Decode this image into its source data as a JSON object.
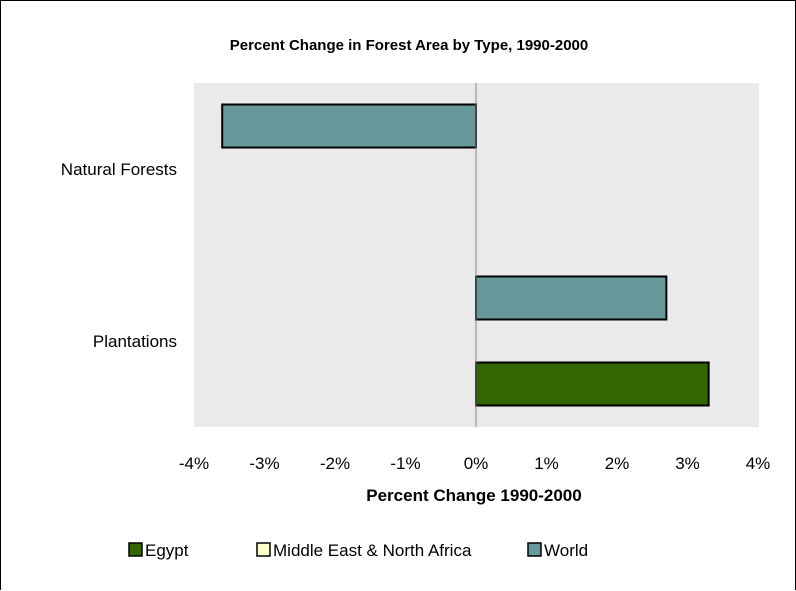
{
  "chart_data": {
    "type": "bar",
    "orientation": "horizontal",
    "title": "Percent Change in Forest Area by Type, 1990-2000",
    "xlabel": "Percent Change 1990-2000",
    "ylabel": "",
    "xlim": [
      -4,
      4
    ],
    "x_ticks": [
      -4,
      -3,
      -2,
      -1,
      0,
      1,
      2,
      3,
      4
    ],
    "x_tick_labels": [
      "-4%",
      "-3%",
      "-2%",
      "-1%",
      "0%",
      "1%",
      "2%",
      "3%",
      "4%"
    ],
    "categories": [
      "Natural Forests",
      "Plantations"
    ],
    "series": [
      {
        "name": "Egypt",
        "color": "#336600",
        "values": [
          null,
          3.3
        ]
      },
      {
        "name": "Middle East & North Africa",
        "color": "#FFFFCC",
        "values": [
          null,
          null
        ]
      },
      {
        "name": "World",
        "color": "#669999",
        "values": [
          -3.6,
          2.7
        ]
      }
    ],
    "grid": false,
    "plot_background": "#EAEAEA",
    "legend_position": "bottom"
  }
}
